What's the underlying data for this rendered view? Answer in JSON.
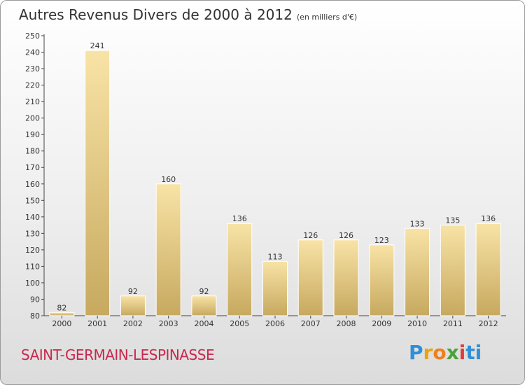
{
  "header": {
    "title": "Autres Revenus Divers de 2000 à 2012",
    "unit": "(en milliers d'€)"
  },
  "footer": {
    "town": "SAINT-GERMAIN-LESPINASSE",
    "logo": [
      "P",
      "r",
      "o",
      "x",
      "i",
      "ti"
    ]
  },
  "colors": {
    "bar_light": "#f6dd9a",
    "bar_dark": "#c8ab62",
    "town": "#c8284f"
  },
  "chart_data": {
    "type": "bar",
    "categories": [
      "2000",
      "2001",
      "2002",
      "2003",
      "2004",
      "2005",
      "2006",
      "2007",
      "2008",
      "2009",
      "2010",
      "2011",
      "2012"
    ],
    "values": [
      82,
      241,
      92,
      160,
      92,
      136,
      113,
      126,
      126,
      123,
      133,
      135,
      136
    ],
    "title": "Autres Revenus Divers de 2000 à 2012",
    "ylim": [
      80,
      250
    ],
    "yticks": [
      80,
      90,
      100,
      110,
      120,
      130,
      140,
      150,
      160,
      170,
      180,
      190,
      200,
      210,
      220,
      230,
      240,
      250
    ],
    "grid": false,
    "data_labels": true
  }
}
